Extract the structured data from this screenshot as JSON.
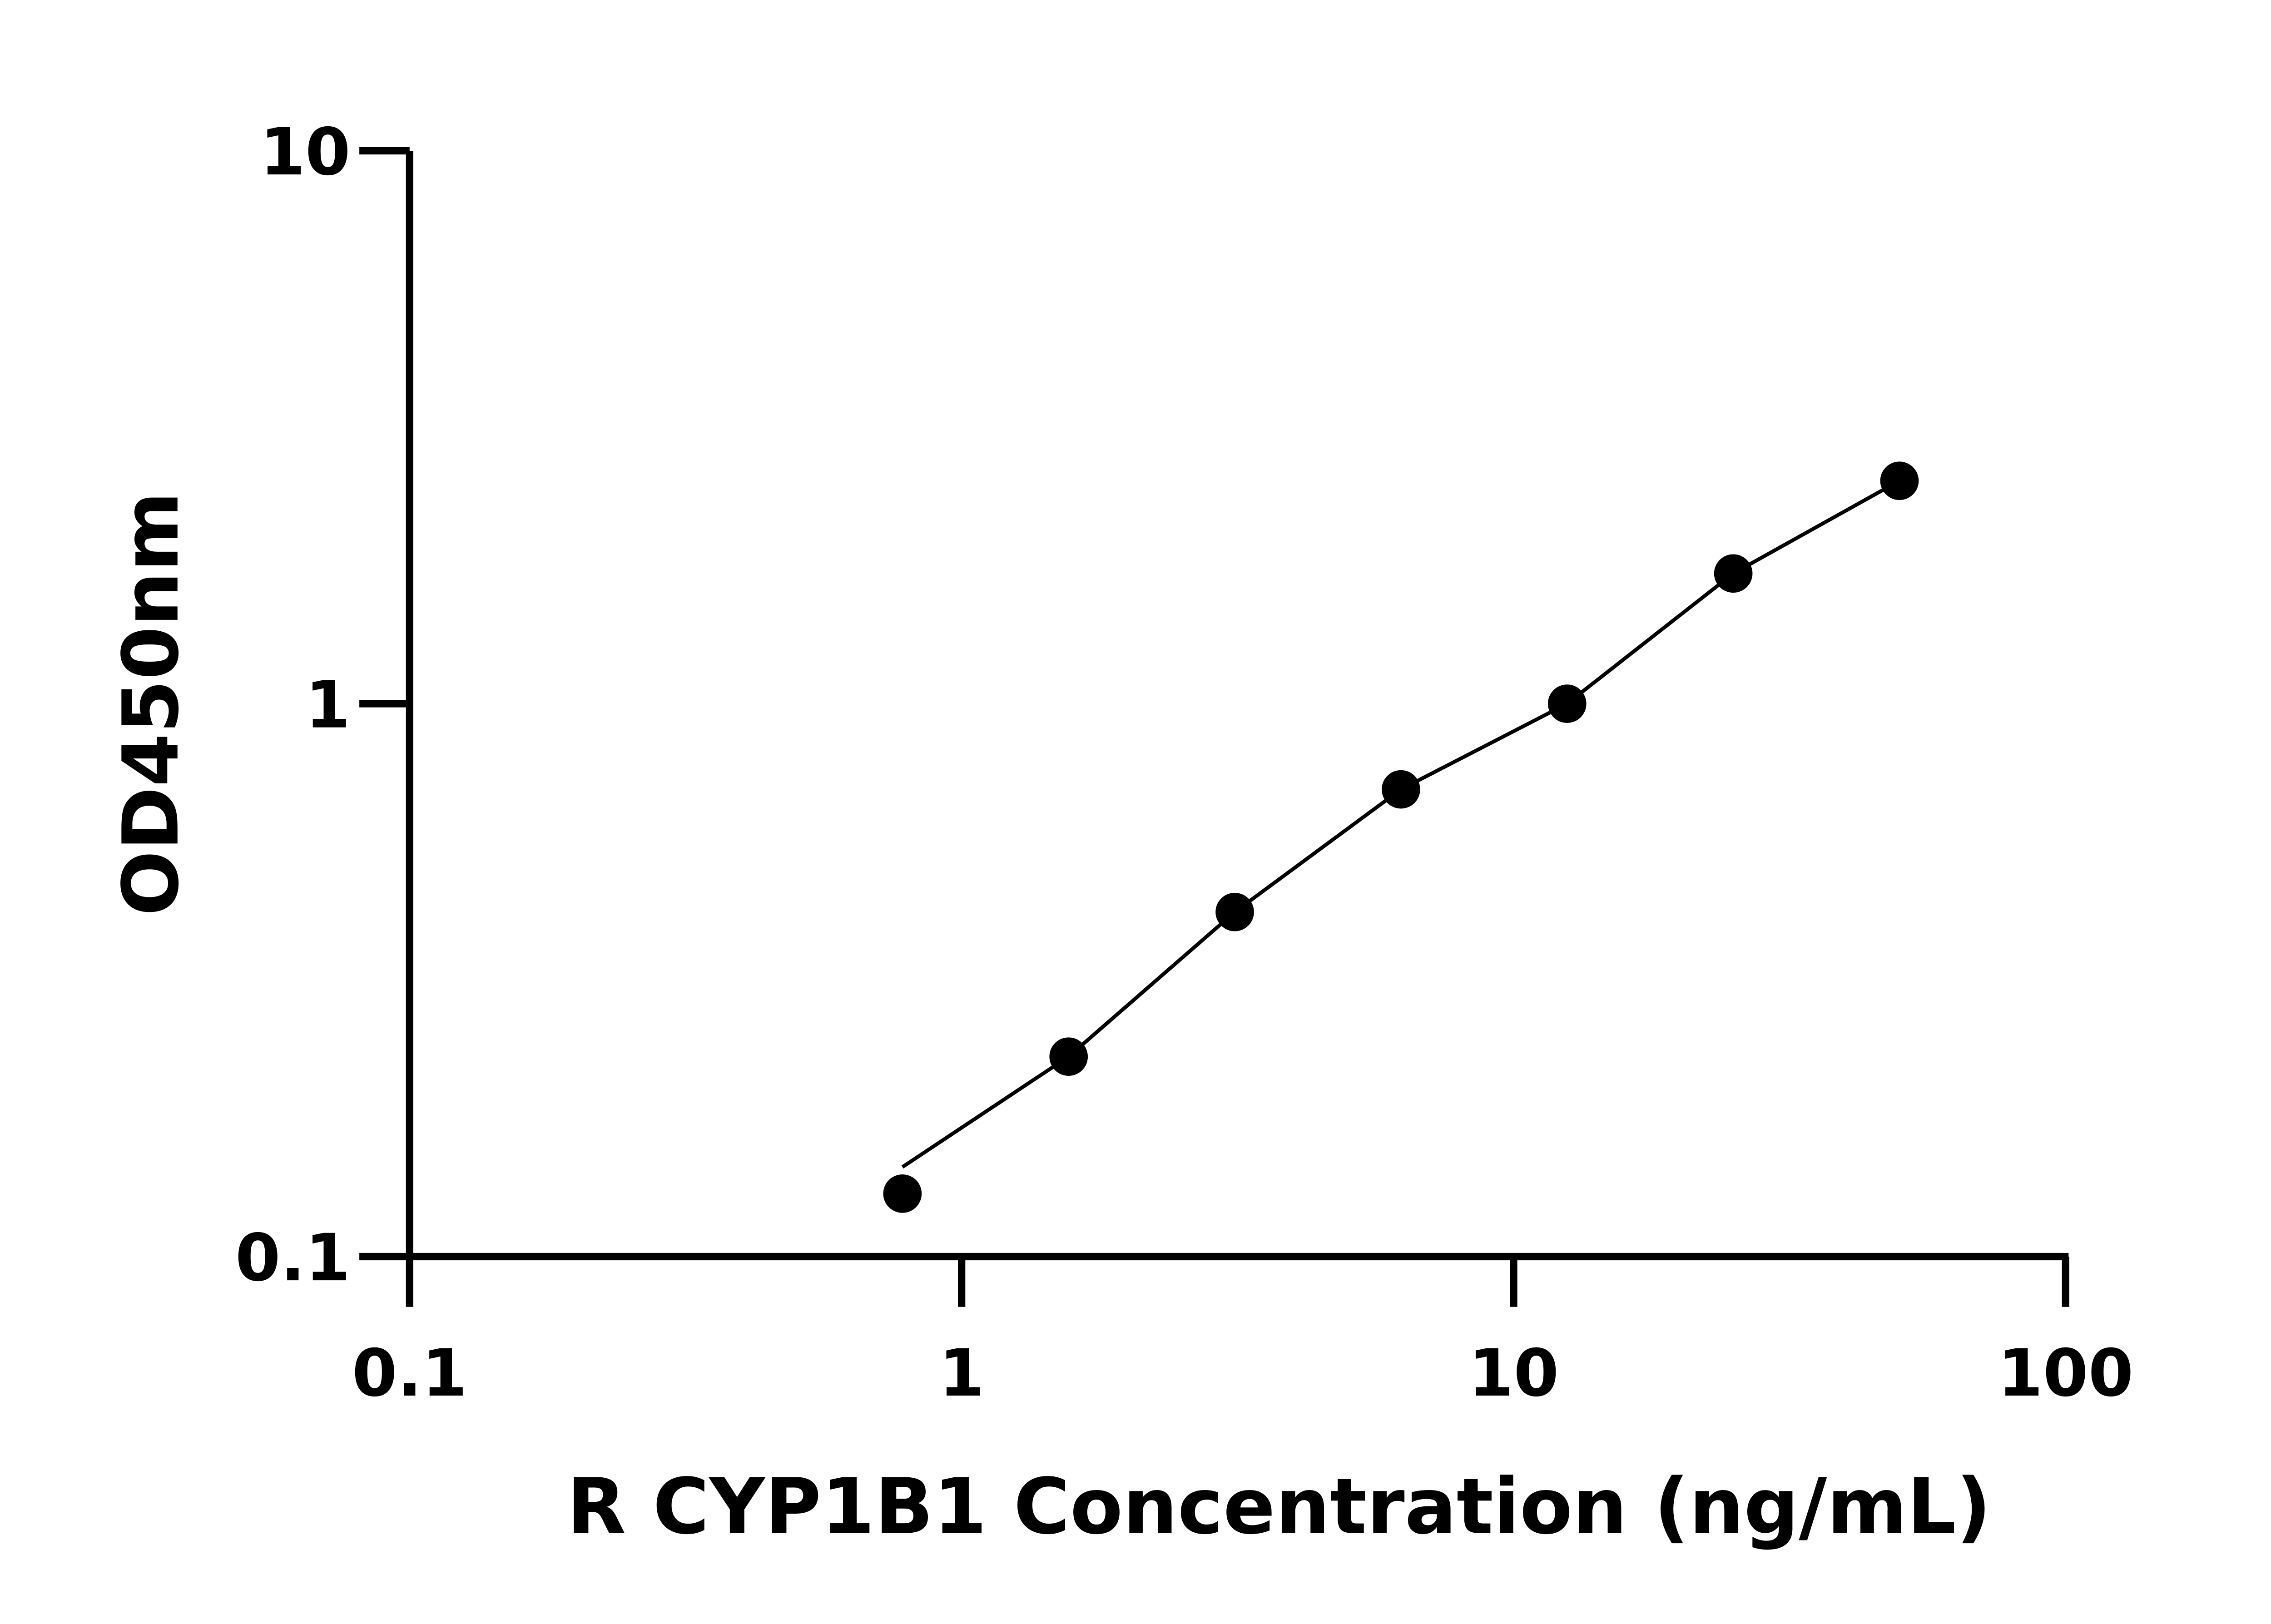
{
  "chart_data": {
    "type": "scatter",
    "title": "",
    "xlabel": "R CYP1B1 Concentration (ng/mL)",
    "ylabel": "OD450nm",
    "x_scale": "log",
    "y_scale": "log",
    "xlim": [
      0.1,
      100
    ],
    "ylim": [
      0.1,
      10
    ],
    "x_ticks": [
      "0.1",
      "1",
      "10",
      "100"
    ],
    "y_ticks": [
      "0.1",
      "1",
      "10"
    ],
    "grid": false,
    "fit_line": true,
    "colors": {
      "points": "#000000",
      "line": "#000000"
    },
    "series": [
      {
        "x": [
          0.78125,
          1.5625,
          3.125,
          6.25,
          12.5,
          25,
          50
        ],
        "y": [
          0.13,
          0.23,
          0.42,
          0.7,
          1.0,
          1.72,
          2.53
        ]
      }
    ]
  }
}
